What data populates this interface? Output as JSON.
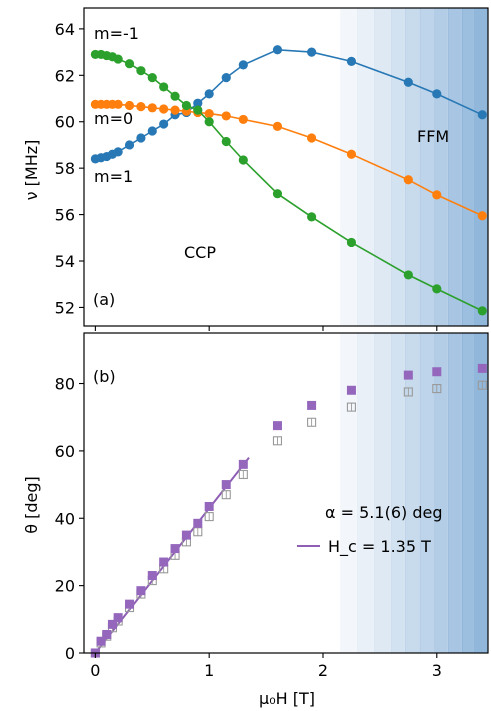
{
  "chart_data": [
    {
      "panel_label": "(a)",
      "type": "scatter",
      "ylabel": "ν [MHz]",
      "ylim": [
        51.2,
        64.9
      ],
      "yticks": [
        "52",
        "54",
        "56",
        "58",
        "60",
        "62",
        "64"
      ],
      "annotations": [
        "m=-1",
        "m=0",
        "m=1",
        "CCP",
        "FFM"
      ],
      "series": [
        {
          "name": "m=1",
          "color": "#2878b5",
          "x": [
            0,
            0.05,
            0.1,
            0.15,
            0.2,
            0.3,
            0.4,
            0.5,
            0.6,
            0.7,
            0.8,
            0.9,
            1.0,
            1.15,
            1.3,
            1.6,
            1.9,
            2.25,
            2.75,
            3.0,
            3.4
          ],
          "y": [
            58.4,
            58.45,
            58.5,
            58.6,
            58.7,
            59.0,
            59.3,
            59.6,
            59.9,
            60.3,
            60.4,
            60.8,
            61.2,
            61.9,
            62.45,
            63.1,
            63.0,
            62.6,
            61.7,
            61.2,
            60.3
          ]
        },
        {
          "name": "m=0",
          "color": "#ff7f0e",
          "x": [
            0,
            0.05,
            0.1,
            0.15,
            0.2,
            0.3,
            0.4,
            0.5,
            0.6,
            0.7,
            0.8,
            0.9,
            1.0,
            1.15,
            1.3,
            1.6,
            1.9,
            2.25,
            2.75,
            3.0,
            3.4
          ],
          "y": [
            60.75,
            60.75,
            60.75,
            60.75,
            60.75,
            60.7,
            60.65,
            60.6,
            60.55,
            60.5,
            60.45,
            60.4,
            60.35,
            60.25,
            60.1,
            59.8,
            59.3,
            58.6,
            57.5,
            56.85,
            55.95
          ]
        },
        {
          "name": "m=-1",
          "color": "#2ca02c",
          "x": [
            0,
            0.05,
            0.1,
            0.15,
            0.2,
            0.3,
            0.4,
            0.5,
            0.6,
            0.7,
            0.8,
            0.9,
            1.0,
            1.15,
            1.3,
            1.6,
            1.9,
            2.25,
            2.75,
            3.0,
            3.4
          ],
          "y": [
            62.9,
            62.9,
            62.85,
            62.8,
            62.7,
            62.5,
            62.2,
            61.9,
            61.5,
            61.1,
            60.7,
            60.5,
            60.0,
            59.15,
            58.35,
            56.9,
            55.9,
            54.8,
            53.4,
            52.8,
            51.85
          ]
        }
      ]
    },
    {
      "panel_label": "(b)",
      "type": "scatter",
      "ylabel": "θ [deg]",
      "xlabel": "μ₀H [T]",
      "ylim": [
        0,
        95
      ],
      "yticks": [
        "0",
        "20",
        "40",
        "60",
        "80"
      ],
      "xlim": [
        -0.1,
        3.45
      ],
      "xticks": [
        "0",
        "1",
        "2",
        "3"
      ],
      "annotations": [
        "α = 5.1(6) deg"
      ],
      "fit_line": {
        "label": "H_c = 1.35 T",
        "color": "#8e5fb5",
        "x": [
          0,
          1.35
        ],
        "y": [
          0,
          58
        ]
      },
      "series": [
        {
          "marker": "filled-square",
          "color": "#9467bd",
          "x": [
            0,
            0.05,
            0.1,
            0.15,
            0.2,
            0.3,
            0.4,
            0.5,
            0.6,
            0.7,
            0.8,
            0.9,
            1.0,
            1.15,
            1.3,
            1.6,
            1.9,
            2.25,
            2.75,
            3.0,
            3.4
          ],
          "y": [
            0,
            3.5,
            5.5,
            8.5,
            10.5,
            14.5,
            18.5,
            23,
            27,
            31,
            35,
            38.5,
            43.5,
            50,
            56,
            67.5,
            73.5,
            78,
            82.5,
            83.5,
            84.5
          ]
        },
        {
          "marker": "open-square",
          "color": "#999999",
          "x": [
            0,
            0.05,
            0.1,
            0.15,
            0.2,
            0.3,
            0.4,
            0.5,
            0.6,
            0.7,
            0.8,
            0.9,
            1.0,
            1.15,
            1.3,
            1.6,
            1.9,
            2.25,
            2.75,
            3.0,
            3.4
          ],
          "y": [
            0,
            3,
            5,
            7.5,
            9.5,
            13.5,
            17.5,
            21.5,
            25,
            29,
            33,
            36,
            40.5,
            47,
            53,
            63,
            68.5,
            73,
            77.5,
            78.5,
            79.5
          ]
        }
      ]
    }
  ]
}
